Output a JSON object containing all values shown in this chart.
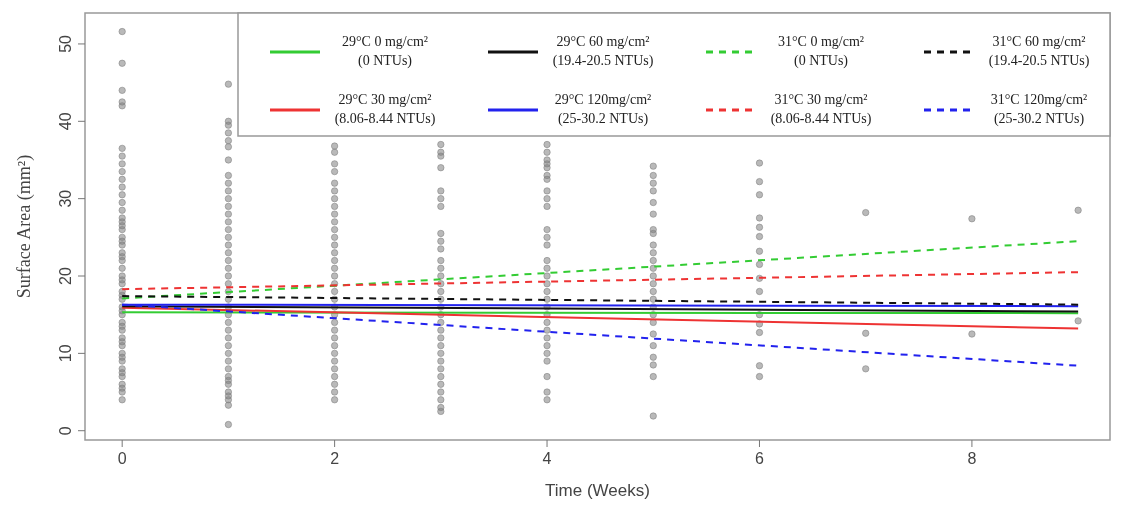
{
  "chart_data": {
    "type": "scatter",
    "xlabel": "Time (Weeks)",
    "ylabel": "Surface Area (mm²)",
    "xlim": [
      -0.35,
      9.3
    ],
    "ylim": [
      -1.2,
      54
    ],
    "xticks": [
      0,
      2,
      4,
      6,
      8
    ],
    "yticks": [
      0,
      10,
      20,
      30,
      40,
      50
    ],
    "grid": false,
    "legend": "top right",
    "series": [
      {
        "color": "#808080",
        "marker": "circle",
        "x": [
          0,
          0,
          0,
          0,
          0,
          0,
          0,
          0,
          0,
          0,
          0,
          0,
          0,
          0,
          0,
          0,
          0,
          0,
          0,
          0,
          0,
          0,
          0,
          0,
          0,
          0,
          0,
          0,
          0,
          0,
          0,
          0,
          0,
          0,
          0,
          0,
          0,
          0,
          0,
          0,
          0,
          0,
          0,
          0,
          0,
          0,
          0,
          0,
          0,
          0,
          1,
          1,
          1,
          1,
          1,
          1,
          1,
          1,
          1,
          1,
          1,
          1,
          1,
          1,
          1,
          1,
          1,
          1,
          1,
          1,
          1,
          1,
          1,
          1,
          1,
          1,
          1,
          1,
          1,
          1,
          1,
          1,
          1,
          1,
          1,
          1,
          1,
          1,
          1,
          1,
          1,
          2,
          2,
          2,
          2,
          2,
          2,
          2,
          2,
          2,
          2,
          2,
          2,
          2,
          2,
          2,
          2,
          2,
          2,
          2,
          2,
          2,
          2,
          2,
          2,
          2,
          2,
          2,
          2,
          2,
          2,
          2,
          2,
          2,
          3,
          3,
          3,
          3,
          3,
          3,
          3,
          3,
          3,
          3,
          3,
          3,
          3,
          3,
          3,
          3,
          3,
          3,
          3,
          3,
          3,
          3,
          3,
          3,
          3,
          3,
          3,
          3,
          3,
          3,
          3,
          4,
          4,
          4,
          4,
          4,
          4,
          4,
          4,
          4,
          4,
          4,
          4,
          4,
          4,
          4,
          4,
          4,
          4,
          4,
          4,
          4,
          4,
          4,
          4,
          4,
          4,
          4,
          4,
          4,
          4,
          5,
          5,
          5,
          5,
          5,
          5,
          5,
          5,
          5,
          5,
          5,
          5,
          5,
          5,
          5,
          5,
          5,
          5,
          5,
          5,
          5,
          5,
          5,
          5,
          5,
          6,
          6,
          6,
          6,
          6,
          6,
          6,
          6,
          6,
          6,
          6,
          6,
          6,
          6,
          6,
          7,
          7,
          7,
          8,
          8,
          9,
          9
        ],
        "values": [
          51.6,
          47.5,
          44,
          42.5,
          42,
          36.5,
          35.5,
          34.5,
          33.5,
          32.5,
          31.5,
          30.5,
          29.5,
          28.5,
          27.5,
          27,
          26.5,
          26,
          25,
          24.5,
          24,
          23,
          22.5,
          22,
          21,
          20,
          19.5,
          19,
          18,
          17.5,
          17,
          16,
          15.5,
          15,
          14,
          13.5,
          13,
          12,
          11.5,
          11,
          10,
          9.5,
          9,
          8,
          7.5,
          7,
          6,
          5.5,
          5,
          4,
          44.8,
          40,
          39.5,
          38.5,
          37.5,
          36.7,
          35,
          33,
          32,
          31,
          30,
          29,
          28,
          27,
          26,
          25,
          24,
          23,
          22,
          21,
          20,
          19,
          18,
          17,
          16,
          15,
          14,
          13,
          12,
          11,
          10,
          9,
          8,
          7,
          6.5,
          6,
          5,
          4.5,
          4,
          3.3,
          0.8,
          36.8,
          36,
          34.5,
          33.5,
          32,
          31,
          30,
          29,
          28,
          27,
          26,
          25,
          24,
          23,
          22,
          21,
          20,
          19,
          18,
          17,
          16,
          15,
          14,
          13,
          12,
          11,
          10,
          9,
          8,
          7,
          6,
          5,
          4,
          37,
          36,
          35.5,
          34,
          31,
          30,
          29,
          25.5,
          24.5,
          23.5,
          22,
          21,
          20,
          19,
          18,
          17,
          16,
          15,
          14,
          13,
          12,
          11,
          10,
          9,
          8,
          7,
          6,
          5,
          4,
          3,
          2.5,
          37,
          36,
          35,
          34.5,
          34,
          33,
          32.5,
          31,
          30,
          29,
          26,
          25,
          24,
          22,
          21,
          20,
          19,
          18,
          17,
          16,
          15,
          14,
          13,
          12,
          11,
          10,
          9,
          7,
          5,
          4,
          34.2,
          33,
          32,
          31,
          29.5,
          28,
          26,
          25.5,
          24,
          23,
          22,
          21,
          20,
          19,
          18,
          17,
          16,
          15,
          14,
          12.5,
          11,
          9.5,
          8.5,
          7,
          1.9,
          34.6,
          32.2,
          30.5,
          27.5,
          26.3,
          25.1,
          23.2,
          21.5,
          19.7,
          18,
          15,
          13.8,
          12.7,
          8.4,
          7,
          28.2,
          12.6,
          8,
          27.4,
          12.5,
          28.5,
          14.2
        ]
      },
      {
        "type": "line",
        "name": "29°C 0 mg/cm²\n(0 NTUs)",
        "color": "#33cc33",
        "line_style": "solid",
        "marker": "none",
        "x": [
          0,
          9
        ],
        "values": [
          15.3,
          15.2
        ]
      },
      {
        "type": "line",
        "name": "29°C 30 mg/cm²\n(8.06-8.44 NTUs)",
        "color": "#ee3333",
        "line_style": "solid",
        "marker": "none",
        "x": [
          0,
          9
        ],
        "values": [
          15.9,
          13.2
        ]
      },
      {
        "type": "line",
        "name": "29°C 60 mg/cm²\n(19.4-20.5 NTUs)",
        "color": "#111111",
        "line_style": "solid",
        "marker": "none",
        "x": [
          0,
          9
        ],
        "values": [
          16.1,
          15.4
        ]
      },
      {
        "type": "line",
        "name": "29°C 120mg/cm²\n(25-30.2 NTUs)",
        "color": "#2222ee",
        "line_style": "solid",
        "marker": "none",
        "x": [
          0,
          9
        ],
        "values": [
          16.3,
          16.1
        ]
      },
      {
        "type": "line",
        "name": "31°C 0 mg/cm²\n(0 NTUs)",
        "color": "#33cc33",
        "line_style": "dashed",
        "marker": "none",
        "x": [
          0,
          9
        ],
        "values": [
          17.1,
          24.5
        ]
      },
      {
        "type": "line",
        "name": "31°C 30 mg/cm²\n(8.06-8.44 NTUs)",
        "color": "#ee3333",
        "line_style": "dashed",
        "marker": "none",
        "x": [
          0,
          9
        ],
        "values": [
          18.3,
          20.5
        ]
      },
      {
        "type": "line",
        "name": "31°C 60 mg/cm²\n(19.4-20.5 NTUs)",
        "color": "#111111",
        "line_style": "dashed",
        "marker": "none",
        "x": [
          0,
          9
        ],
        "values": [
          17.4,
          16.3
        ]
      },
      {
        "type": "line",
        "name": "31°C 120mg/cm²\n(25-30.2 NTUs)",
        "color": "#2222ee",
        "line_style": "dashed",
        "marker": "none",
        "x": [
          0,
          9
        ],
        "values": [
          16.3,
          8.4
        ]
      }
    ]
  }
}
